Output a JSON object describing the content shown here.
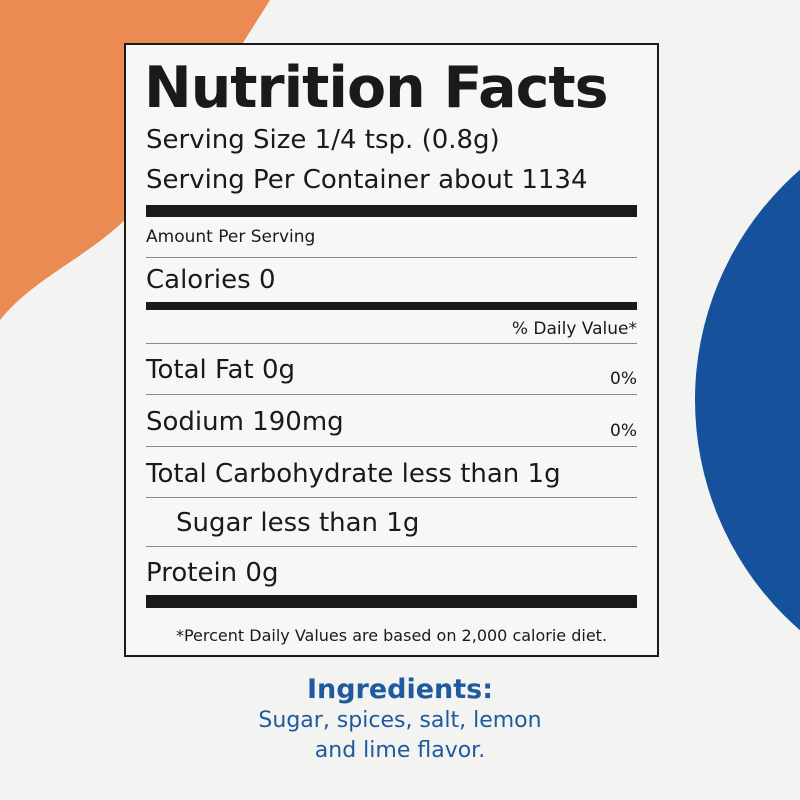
{
  "colors": {
    "orange": "#eb8a52",
    "blue": "#16519b",
    "ink": "#1a1a1a",
    "ingredients": "#1f5a9e"
  },
  "label": {
    "title": "Nutrition Facts",
    "serving_size": "Serving Size 1/4 tsp. (0.8g)",
    "servings_per_container": "Serving Per Container about 1134",
    "amount_per_serving": "Amount Per Serving",
    "calories": "Calories 0",
    "daily_value_header": "% Daily Value*",
    "nutrients": [
      {
        "label": "Total Fat 0g",
        "dv": "0%"
      },
      {
        "label": "Sodium 190mg",
        "dv": "0%"
      },
      {
        "label": "Total Carbohydrate less than 1g",
        "dv": ""
      },
      {
        "label": "Sugar less than 1g",
        "dv": ""
      },
      {
        "label": "Protein 0g",
        "dv": ""
      }
    ],
    "footnote": "*Percent Daily Values are based on 2,000 calorie diet."
  },
  "ingredients": {
    "title": "Ingredients:",
    "line1": "Sugar, spices, salt, lemon",
    "line2": "and lime flavor."
  }
}
